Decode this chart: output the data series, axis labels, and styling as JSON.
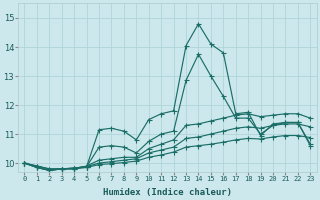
{
  "xlabel": "Humidex (Indice chaleur)",
  "bg_color": "#cde8ec",
  "grid_color": "#b0d4d8",
  "line_color": "#1a6e68",
  "xlim": [
    -0.5,
    23.5
  ],
  "ylim": [
    9.7,
    15.5
  ],
  "yticks": [
    10,
    11,
    12,
    13,
    14,
    15
  ],
  "xticks": [
    0,
    1,
    2,
    3,
    4,
    5,
    6,
    7,
    8,
    9,
    10,
    11,
    12,
    13,
    14,
    15,
    16,
    17,
    18,
    19,
    20,
    21,
    22,
    23
  ],
  "series": [
    [
      10.0,
      9.9,
      9.8,
      9.8,
      9.83,
      9.88,
      11.15,
      11.2,
      11.1,
      10.8,
      11.5,
      11.7,
      11.8,
      14.05,
      14.8,
      14.1,
      13.8,
      11.7,
      11.75,
      10.95,
      11.35,
      11.4,
      11.4,
      10.65
    ],
    [
      10.0,
      9.9,
      9.8,
      9.8,
      9.83,
      9.88,
      10.55,
      10.6,
      10.55,
      10.35,
      10.75,
      11.0,
      11.1,
      12.85,
      13.75,
      13.0,
      12.3,
      11.55,
      11.55,
      11.0,
      11.3,
      11.4,
      11.4,
      10.6
    ],
    [
      10.0,
      9.85,
      9.75,
      9.8,
      9.8,
      9.9,
      10.1,
      10.15,
      10.2,
      10.2,
      10.5,
      10.65,
      10.8,
      11.3,
      11.35,
      11.45,
      11.55,
      11.65,
      11.7,
      11.6,
      11.65,
      11.7,
      11.7,
      11.55
    ],
    [
      10.0,
      9.85,
      9.75,
      9.8,
      9.82,
      9.88,
      10.0,
      10.05,
      10.1,
      10.15,
      10.35,
      10.45,
      10.55,
      10.85,
      10.9,
      11.0,
      11.1,
      11.2,
      11.25,
      11.2,
      11.3,
      11.35,
      11.35,
      11.25
    ],
    [
      10.0,
      9.85,
      9.75,
      9.8,
      9.8,
      9.85,
      9.95,
      9.98,
      10.02,
      10.07,
      10.2,
      10.28,
      10.38,
      10.55,
      10.6,
      10.65,
      10.72,
      10.8,
      10.85,
      10.83,
      10.9,
      10.95,
      10.95,
      10.88
    ]
  ],
  "markersize": 2.0,
  "linewidth": 0.85
}
